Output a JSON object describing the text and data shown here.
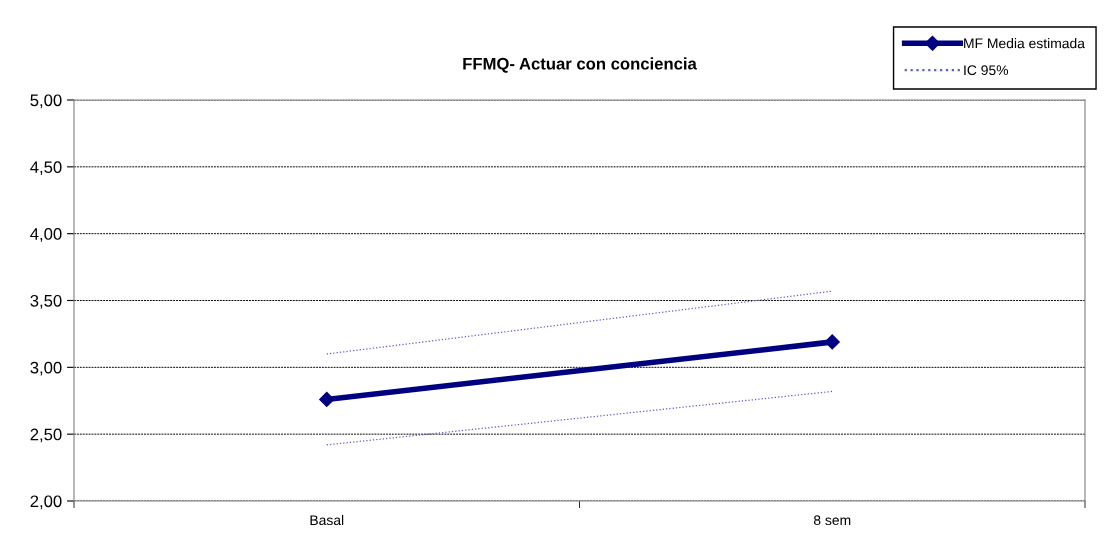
{
  "chart_data": {
    "type": "line",
    "title": "FFMQ- Actuar con conciencia",
    "categories": [
      "Basal",
      "8 sem"
    ],
    "series": [
      {
        "name": "MF Media estimada",
        "color": "#000080",
        "values": [
          2.76,
          3.19
        ],
        "marker": "diamond",
        "line_style": "solid"
      },
      {
        "name": "IC 95%",
        "color": "#5c5cc8",
        "values": [
          3.1,
          3.57
        ],
        "marker": "none",
        "line_style": "dotted"
      },
      {
        "color": "#5c5cc8",
        "values": [
          2.42,
          2.82
        ],
        "marker": "none",
        "line_style": "dotted"
      }
    ],
    "ylim": [
      2,
      5
    ],
    "yticks": [
      {
        "value": 2,
        "label": "2,00"
      },
      {
        "value": 2.5,
        "label": "2,50"
      },
      {
        "value": 3,
        "label": "3,00"
      },
      {
        "value": 3.5,
        "label": "3,50"
      },
      {
        "value": 4,
        "label": "4,00"
      },
      {
        "value": 4.5,
        "label": "4,50"
      },
      {
        "value": 5,
        "label": "5,00"
      }
    ],
    "grid": "y",
    "legend": "top right"
  }
}
